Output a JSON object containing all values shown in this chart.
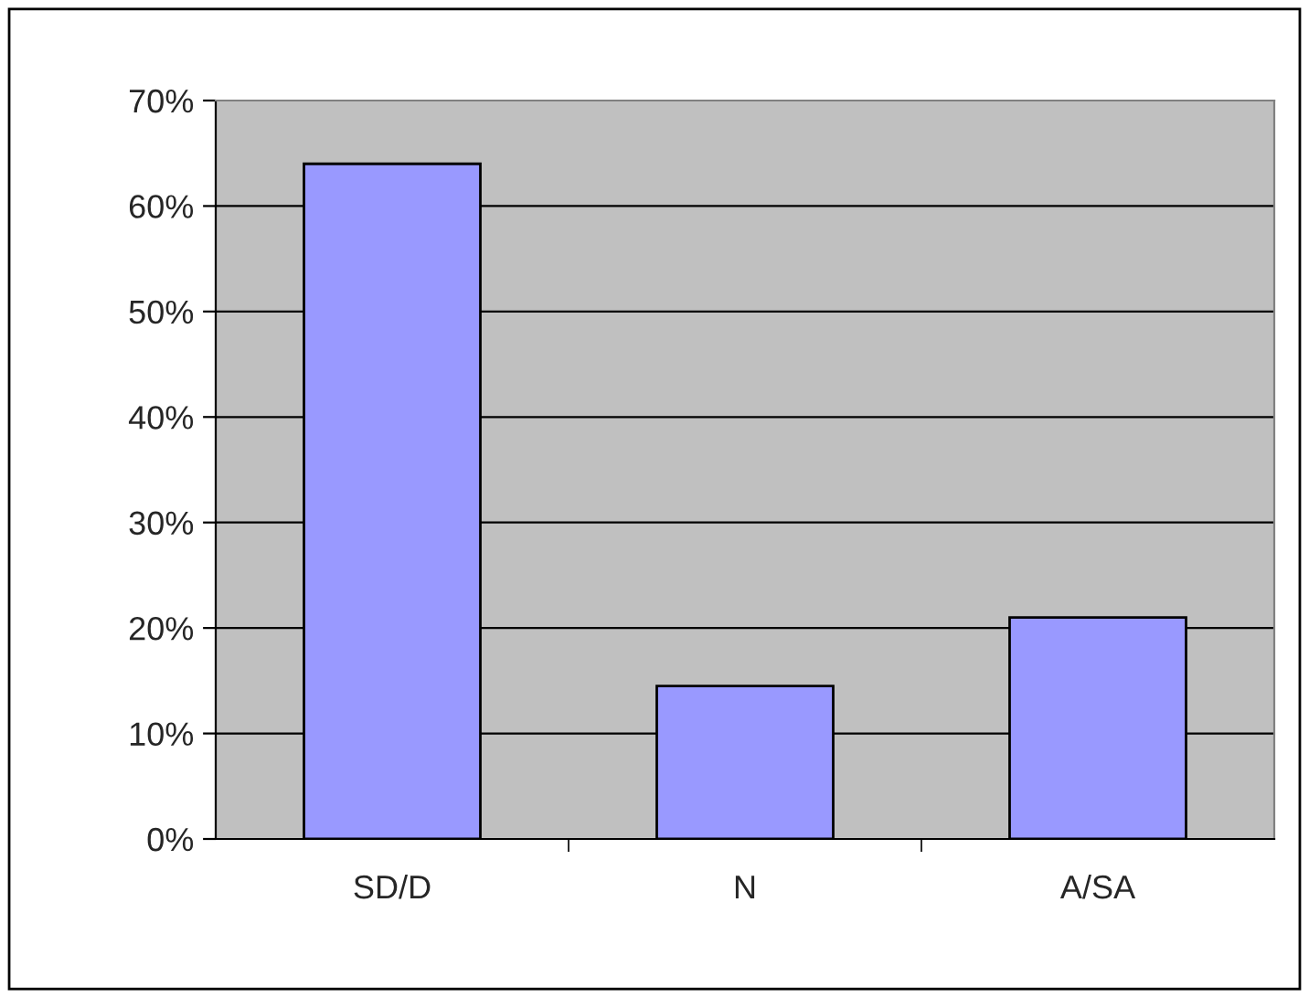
{
  "chart_data": {
    "type": "bar",
    "categories": [
      "SD/D",
      "N",
      "A/SA"
    ],
    "values": [
      64,
      14.5,
      21
    ],
    "color": "#9999ff",
    "ylim": [
      0,
      70
    ],
    "yticks": [
      {
        "value": 0,
        "label": "0%"
      },
      {
        "value": 10,
        "label": "10%"
      },
      {
        "value": 20,
        "label": "20%"
      },
      {
        "value": 30,
        "label": "30%"
      },
      {
        "value": 40,
        "label": "40%"
      },
      {
        "value": 50,
        "label": "50%"
      },
      {
        "value": 60,
        "label": "60%"
      },
      {
        "value": 70,
        "label": "70%"
      }
    ],
    "grid": "y",
    "legend": false
  }
}
